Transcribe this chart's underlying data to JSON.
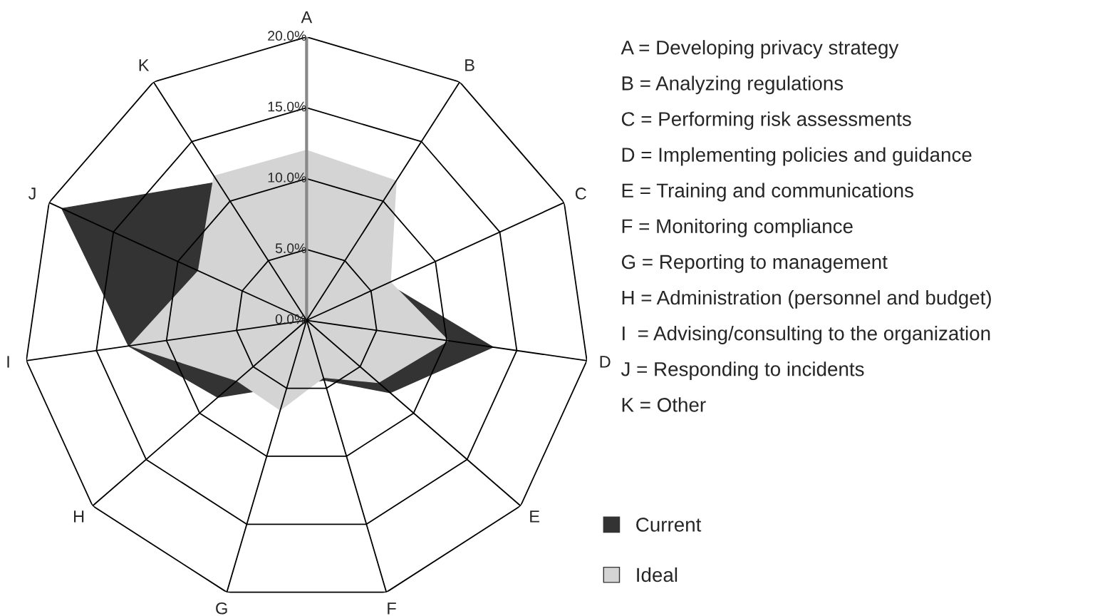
{
  "chart_data": {
    "type": "radar",
    "categories": [
      "A",
      "B",
      "C",
      "D",
      "E",
      "F",
      "G",
      "H",
      "I",
      "J",
      "K"
    ],
    "series": [
      {
        "name": "Current",
        "color": "#333333",
        "values": [
          null,
          null,
          null,
          13.3,
          7.8,
          4.4,
          null,
          8.3,
          12.7,
          19.0,
          11.6
        ]
      },
      {
        "name": "Ideal",
        "color": "#d4d4d4",
        "values": [
          12.0,
          11.7,
          6.5,
          10.1,
          6.7,
          4.2,
          6.6,
          6.5,
          12.6,
          8.4,
          12.1
        ]
      }
    ],
    "ylim": [
      0,
      20
    ],
    "yticks": [
      {
        "value": 0,
        "label": "0.0%"
      },
      {
        "value": 5,
        "label": "5.0%"
      },
      {
        "value": 10,
        "label": "10.0%"
      },
      {
        "value": 15,
        "label": "15.0%"
      },
      {
        "value": 20,
        "label": "20.0%"
      }
    ],
    "grid": true,
    "legend": "bottom right",
    "annotations": [
      "A = Developing privacy strategy",
      "B = Analyzing regulations",
      "C = Performing risk assessments",
      "D = Implementing policies and guidance",
      "E = Training and communications",
      "F = Monitoring compliance",
      "G = Reporting to management",
      "H = Administration (personnel and budget)",
      "I  = Advising/consulting to the organization",
      "J = Responding to incidents",
      "K = Other"
    ]
  }
}
